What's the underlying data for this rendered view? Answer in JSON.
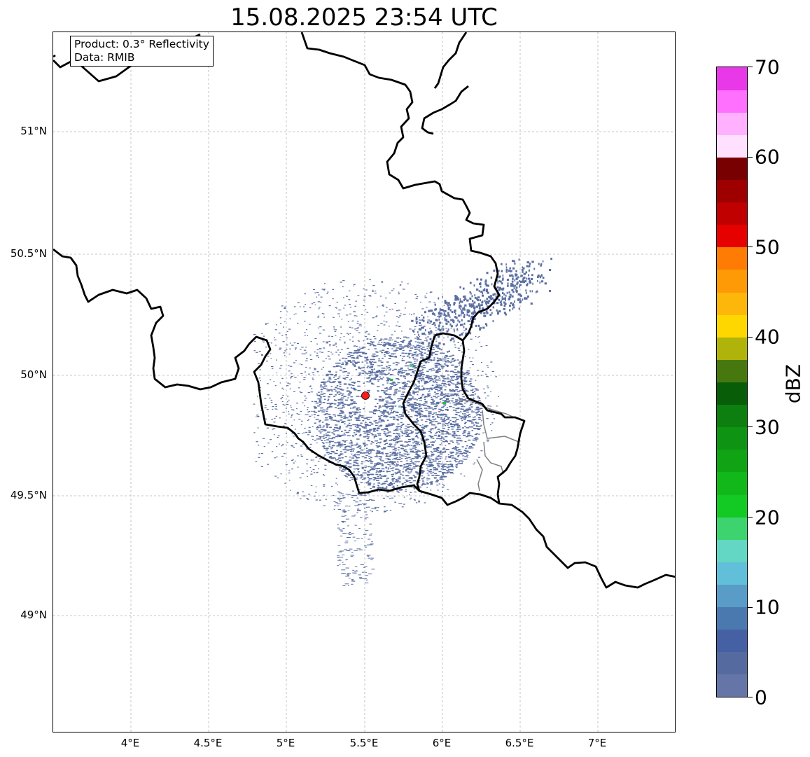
{
  "title": "15.08.2025 23:54 UTC",
  "info_box": {
    "product": "Product: 0.3° Reflectivity",
    "data": "Data: RMIB"
  },
  "map": {
    "lon_range": [
      3.5,
      7.5
    ],
    "lat_range": [
      48.5,
      51.4
    ],
    "x_ticks": [
      "4°E",
      "4.5°E",
      "5°E",
      "5.5°E",
      "6°E",
      "6.5°E",
      "7°E"
    ],
    "y_ticks": [
      "51°N",
      "50.5°N",
      "50°N",
      "49.5°N",
      "49°N"
    ],
    "radar_site": {
      "lon": 5.505,
      "lat": 49.914,
      "color": "#ff1a1a"
    },
    "gridlines": true
  },
  "colorbar": {
    "label": "dBZ",
    "range": [
      0,
      70
    ],
    "ticks": [
      "0",
      "10",
      "20",
      "30",
      "40",
      "50",
      "60",
      "70"
    ],
    "colors": [
      "#6675a8",
      "#556a9f",
      "#4660a4",
      "#4a79b0",
      "#5a9cc8",
      "#62bfd9",
      "#63d6c4",
      "#3dd470",
      "#13c924",
      "#12b81a",
      "#10a414",
      "#0f9312",
      "#0d7f10",
      "#085d08",
      "#47780f",
      "#b0b40a",
      "#ffd700",
      "#fdb70a",
      "#fd9a05",
      "#fe7c03",
      "#e60000",
      "#c00000",
      "#9e0000",
      "#780000",
      "#ffe0ff",
      "#ffb0ff",
      "#ff70ff",
      "#e838e8"
    ]
  },
  "echo_color": "#5b6fa3"
}
